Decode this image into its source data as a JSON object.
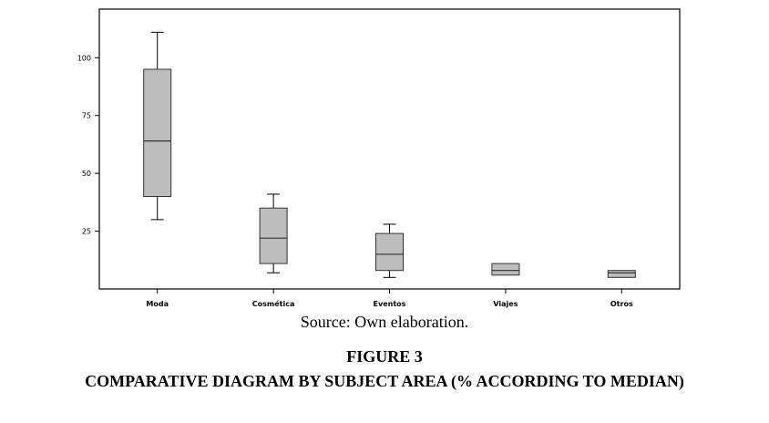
{
  "chart_data": {
    "type": "box",
    "title": "",
    "xlabel": "",
    "ylabel": "",
    "ylim": [
      0,
      121
    ],
    "yticks": [
      25,
      50,
      75,
      100
    ],
    "grid": false,
    "box_fill": "#bdbdbd",
    "categories": [
      "Moda",
      "Cosmética",
      "Eventos",
      "Viajes",
      "Otros"
    ],
    "boxes": [
      {
        "category": "Moda",
        "min": 30,
        "q1": 40,
        "median": 64,
        "q3": 95,
        "max": 111
      },
      {
        "category": "Cosmética",
        "min": 7,
        "q1": 11,
        "median": 22,
        "q3": 35,
        "max": 41
      },
      {
        "category": "Eventos",
        "min": 5,
        "q1": 8,
        "median": 15,
        "q3": 24,
        "max": 28
      },
      {
        "category": "Viajes",
        "min": 6,
        "q1": 6,
        "median": 8,
        "q3": 11,
        "max": 11
      },
      {
        "category": "Otros",
        "min": 5,
        "q1": 5,
        "median": 7,
        "q3": 8,
        "max": 8
      }
    ]
  },
  "caption": {
    "source": "Source: Own elaboration.",
    "figure_number": "FIGURE 3",
    "figure_title": "COMPARATIVE DIAGRAM BY SUBJECT AREA (% ACCORDING TO MEDIAN)"
  }
}
